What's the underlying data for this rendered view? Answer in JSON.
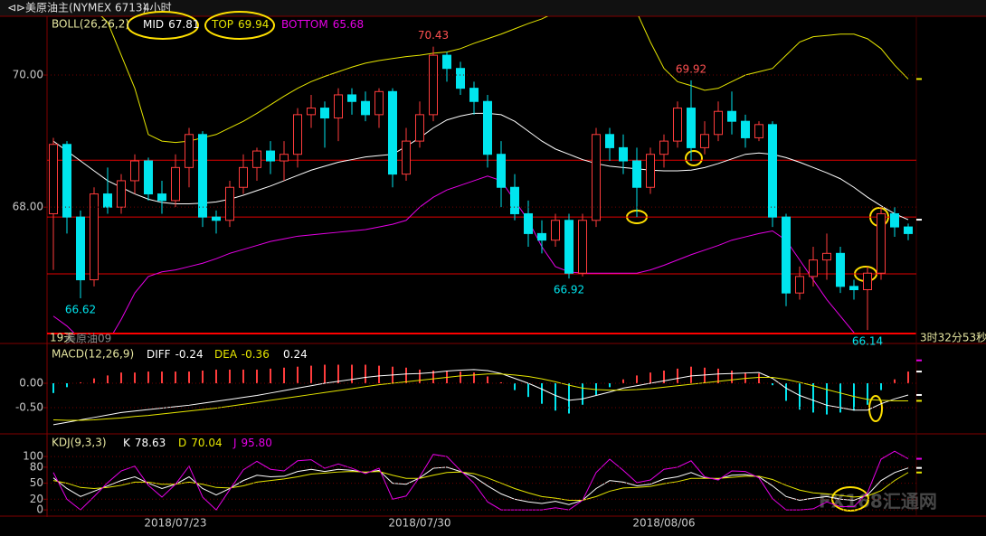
{
  "header": {
    "title": "美原油主(NYMEX 6713)",
    "period": "4小时",
    "status_days": "19天",
    "status_contract": "美原油09",
    "countdown": "3时32分53秒",
    "watermark": "FX168汇通网"
  },
  "chart_data": [
    {
      "type": "candlestick",
      "indicator": "BOLL(26,26,2)",
      "categories": [
        null,
        null,
        null,
        null,
        null,
        null,
        null,
        null,
        null,
        "2018/07/23",
        null,
        null,
        null,
        null,
        null,
        null,
        null,
        null,
        null,
        null,
        null,
        null,
        null,
        null,
        null,
        null,
        null,
        "2018/07/30",
        null,
        null,
        null,
        null,
        null,
        null,
        null,
        null,
        null,
        null,
        null,
        null,
        null,
        null,
        null,
        null,
        null,
        "2018/08/06",
        null,
        null,
        null,
        null,
        null,
        null,
        null,
        null,
        null,
        null,
        null,
        null,
        null,
        null,
        null,
        null,
        null,
        null
      ],
      "ohlc": [
        [
          67.9,
          69.05,
          67.05,
          68.95
        ],
        [
          68.95,
          69.0,
          67.6,
          67.85
        ],
        [
          67.85,
          67.95,
          66.62,
          66.9
        ],
        [
          66.9,
          68.3,
          66.8,
          68.2
        ],
        [
          68.2,
          68.6,
          67.9,
          68.0
        ],
        [
          68.0,
          68.5,
          67.9,
          68.4
        ],
        [
          68.4,
          68.8,
          68.2,
          68.7
        ],
        [
          68.7,
          68.75,
          68.1,
          68.2
        ],
        [
          68.2,
          68.4,
          67.9,
          68.1
        ],
        [
          68.1,
          68.8,
          68.0,
          68.6
        ],
        [
          68.6,
          69.2,
          68.3,
          69.1
        ],
        [
          69.1,
          69.15,
          67.7,
          67.85
        ],
        [
          67.85,
          67.95,
          67.6,
          67.8
        ],
        [
          67.8,
          68.4,
          67.7,
          68.3
        ],
        [
          68.3,
          68.8,
          68.2,
          68.6
        ],
        [
          68.6,
          68.9,
          68.4,
          68.85
        ],
        [
          68.85,
          69.0,
          68.5,
          68.7
        ],
        [
          68.7,
          69.0,
          68.4,
          68.8
        ],
        [
          68.8,
          69.5,
          68.6,
          69.4
        ],
        [
          69.4,
          69.7,
          69.2,
          69.5
        ],
        [
          69.5,
          69.6,
          68.9,
          69.35
        ],
        [
          69.35,
          69.8,
          69.0,
          69.7
        ],
        [
          69.7,
          69.8,
          69.4,
          69.6
        ],
        [
          69.6,
          69.75,
          69.3,
          69.4
        ],
        [
          69.4,
          69.8,
          69.2,
          69.75
        ],
        [
          69.75,
          69.8,
          68.3,
          68.5
        ],
        [
          68.5,
          69.2,
          68.4,
          69.0
        ],
        [
          69.0,
          69.6,
          68.9,
          69.4
        ],
        [
          69.4,
          70.43,
          69.3,
          70.3
        ],
        [
          70.3,
          70.35,
          69.9,
          70.1
        ],
        [
          70.1,
          70.2,
          69.7,
          69.8
        ],
        [
          69.8,
          69.9,
          69.4,
          69.6
        ],
        [
          69.6,
          69.7,
          68.6,
          68.8
        ],
        [
          68.8,
          69.0,
          68.0,
          68.3
        ],
        [
          68.3,
          68.5,
          67.8,
          67.9
        ],
        [
          67.9,
          68.1,
          67.4,
          67.6
        ],
        [
          67.6,
          67.8,
          67.3,
          67.5
        ],
        [
          67.5,
          67.9,
          67.4,
          67.8
        ],
        [
          67.8,
          67.9,
          66.92,
          67.0
        ],
        [
          67.0,
          67.9,
          66.95,
          67.8
        ],
        [
          67.8,
          69.2,
          67.7,
          69.1
        ],
        [
          69.1,
          69.2,
          68.7,
          68.9
        ],
        [
          68.9,
          69.1,
          68.5,
          68.7
        ],
        [
          68.7,
          68.9,
          67.85,
          68.3
        ],
        [
          68.3,
          68.9,
          68.2,
          68.8
        ],
        [
          68.8,
          69.1,
          68.6,
          69.0
        ],
        [
          69.0,
          69.6,
          68.9,
          69.5
        ],
        [
          69.5,
          69.92,
          68.7,
          68.9
        ],
        [
          68.9,
          69.3,
          68.8,
          69.1
        ],
        [
          69.1,
          69.6,
          69.0,
          69.45
        ],
        [
          69.45,
          69.75,
          69.1,
          69.3
        ],
        [
          69.3,
          69.4,
          68.9,
          69.05
        ],
        [
          69.05,
          69.3,
          69.0,
          69.25
        ],
        [
          69.25,
          69.3,
          67.7,
          67.85
        ],
        [
          67.85,
          67.9,
          66.5,
          66.7
        ],
        [
          66.7,
          67.1,
          66.6,
          66.95
        ],
        [
          66.95,
          67.4,
          66.8,
          67.2
        ],
        [
          67.2,
          67.6,
          66.9,
          67.3
        ],
        [
          67.3,
          67.4,
          66.7,
          66.8
        ],
        [
          66.8,
          66.9,
          66.6,
          66.75
        ],
        [
          66.75,
          67.1,
          66.14,
          67.0
        ],
        [
          67.0,
          68.0,
          66.9,
          67.9
        ],
        [
          67.9,
          68.0,
          67.55,
          67.7
        ],
        [
          67.7,
          67.75,
          67.5,
          67.6
        ]
      ],
      "up_color": "#ff3c3c",
      "down_color": "#00e5ee",
      "overlays": [
        {
          "name": "MID",
          "color": "#ffffff",
          "current": 67.81,
          "values": [
            69.0,
            68.85,
            68.7,
            68.55,
            68.4,
            68.3,
            68.2,
            68.12,
            68.07,
            68.05,
            68.05,
            68.06,
            68.08,
            68.12,
            68.18,
            68.25,
            68.32,
            68.4,
            68.48,
            68.56,
            68.62,
            68.68,
            68.72,
            68.76,
            68.78,
            68.8,
            68.92,
            69.05,
            69.2,
            69.32,
            69.38,
            69.42,
            69.42,
            69.4,
            69.3,
            69.15,
            69.0,
            68.88,
            68.8,
            68.72,
            68.66,
            68.62,
            68.6,
            68.58,
            68.56,
            68.55,
            68.55,
            68.56,
            68.6,
            68.66,
            68.73,
            68.8,
            68.82,
            68.8,
            68.75,
            68.68,
            68.6,
            68.52,
            68.43,
            68.3,
            68.15,
            68.02,
            67.9,
            67.81
          ]
        },
        {
          "name": "TOP",
          "color": "#e6e600",
          "current": 69.94,
          "values": [
            71.3,
            71.2,
            71.1,
            71.0,
            70.8,
            70.3,
            69.8,
            69.1,
            69.0,
            68.98,
            69.0,
            69.05,
            69.1,
            69.2,
            69.3,
            69.42,
            69.55,
            69.68,
            69.8,
            69.9,
            69.98,
            70.05,
            70.12,
            70.18,
            70.22,
            70.25,
            70.28,
            70.3,
            70.33,
            70.35,
            70.4,
            70.48,
            70.55,
            70.62,
            70.7,
            70.78,
            70.85,
            70.95,
            71.0,
            71.05,
            71.05,
            71.05,
            71.0,
            70.95,
            70.5,
            70.1,
            69.9,
            69.84,
            69.77,
            69.8,
            69.9,
            70.0,
            70.05,
            70.1,
            70.3,
            70.5,
            70.58,
            70.6,
            70.62,
            70.62,
            70.55,
            70.4,
            70.15,
            69.94
          ]
        },
        {
          "name": "BOTTOM",
          "color": "#e600e6",
          "current": 65.68,
          "values": [
            66.35,
            66.2,
            66.0,
            65.9,
            65.95,
            66.3,
            66.7,
            66.95,
            67.02,
            67.05,
            67.1,
            67.15,
            67.22,
            67.3,
            67.36,
            67.42,
            67.48,
            67.52,
            67.56,
            67.58,
            67.6,
            67.62,
            67.64,
            67.66,
            67.7,
            67.74,
            67.8,
            68.0,
            68.15,
            68.26,
            68.33,
            68.4,
            68.47,
            68.4,
            68.1,
            67.8,
            67.4,
            67.1,
            67.02,
            67.0,
            67.0,
            67.0,
            67.0,
            67.0,
            67.05,
            67.12,
            67.2,
            67.28,
            67.35,
            67.42,
            67.5,
            67.55,
            67.6,
            67.64,
            67.5,
            67.2,
            66.9,
            66.6,
            66.35,
            66.1,
            65.95,
            65.8,
            65.72,
            65.68
          ]
        }
      ],
      "price_labels": [
        66.62,
        70.43,
        69.92,
        66.92,
        66.14
      ],
      "price_lines": [
        68.71,
        67.85,
        66.99
      ],
      "price_line_color": "#e00000",
      "ylim": [
        66.1,
        70.89
      ],
      "yticks": [
        {
          "value": 70,
          "label": "70.00"
        },
        {
          "value": 68,
          "label": "68.00"
        }
      ],
      "grid": true
    },
    {
      "type": "macd",
      "indicator": "MACD(12,26,9)",
      "ylim": [
        -1.0,
        0.76
      ],
      "yticks": [
        {
          "value": 0,
          "label": "0.00"
        },
        {
          "value": -0.5,
          "label": "-0.50"
        }
      ],
      "grid": true,
      "series": [
        {
          "name": "DIFF",
          "color": "#ffffff",
          "current": -0.24,
          "values": [
            -0.85,
            -0.8,
            -0.75,
            -0.7,
            -0.65,
            -0.6,
            -0.57,
            -0.54,
            -0.51,
            -0.48,
            -0.45,
            -0.41,
            -0.37,
            -0.33,
            -0.29,
            -0.25,
            -0.2,
            -0.15,
            -0.1,
            -0.05,
            0.0,
            0.04,
            0.08,
            0.12,
            0.15,
            0.17,
            0.19,
            0.2,
            0.22,
            0.25,
            0.27,
            0.28,
            0.26,
            0.2,
            0.1,
            0.0,
            -0.12,
            -0.25,
            -0.35,
            -0.32,
            -0.25,
            -0.18,
            -0.1,
            -0.05,
            0.0,
            0.05,
            0.1,
            0.15,
            0.17,
            0.19,
            0.2,
            0.21,
            0.22,
            0.1,
            -0.1,
            -0.25,
            -0.35,
            -0.45,
            -0.5,
            -0.55,
            -0.55,
            -0.42,
            -0.32,
            -0.24
          ]
        },
        {
          "name": "DEA",
          "color": "#e6e600",
          "current": -0.36,
          "values": [
            -0.75,
            -0.76,
            -0.76,
            -0.75,
            -0.73,
            -0.71,
            -0.68,
            -0.66,
            -0.63,
            -0.6,
            -0.57,
            -0.54,
            -0.51,
            -0.47,
            -0.43,
            -0.39,
            -0.35,
            -0.31,
            -0.27,
            -0.23,
            -0.19,
            -0.15,
            -0.11,
            -0.07,
            -0.03,
            0.0,
            0.03,
            0.06,
            0.09,
            0.12,
            0.15,
            0.17,
            0.19,
            0.19,
            0.17,
            0.14,
            0.09,
            0.03,
            -0.04,
            -0.1,
            -0.13,
            -0.14,
            -0.14,
            -0.13,
            -0.11,
            -0.08,
            -0.05,
            -0.02,
            0.01,
            0.04,
            0.07,
            0.1,
            0.12,
            0.12,
            0.08,
            0.02,
            -0.05,
            -0.13,
            -0.2,
            -0.27,
            -0.33,
            -0.35,
            -0.36,
            -0.36
          ]
        }
      ],
      "histogram": {
        "color": "#ffffff",
        "up_color": "#ff3c3c",
        "down_color": "#00e5ee",
        "current": 0.24,
        "values": [
          -0.2,
          -0.08,
          0.02,
          0.1,
          0.16,
          0.22,
          0.22,
          0.24,
          0.24,
          0.24,
          0.24,
          0.26,
          0.28,
          0.28,
          0.28,
          0.28,
          0.3,
          0.32,
          0.34,
          0.36,
          0.38,
          0.38,
          0.38,
          0.38,
          0.36,
          0.34,
          0.32,
          0.28,
          0.26,
          0.26,
          0.24,
          0.22,
          0.14,
          0.02,
          -0.14,
          -0.28,
          -0.42,
          -0.56,
          -0.62,
          -0.44,
          -0.24,
          -0.08,
          0.08,
          0.16,
          0.22,
          0.26,
          0.3,
          0.34,
          0.32,
          0.3,
          0.26,
          0.22,
          0.2,
          -0.04,
          -0.36,
          -0.54,
          -0.6,
          -0.64,
          -0.6,
          -0.56,
          -0.44,
          -0.14,
          0.08,
          0.24
        ]
      }
    },
    {
      "type": "line",
      "indicator": "KDJ(9,3,3)",
      "ylim": [
        -10,
        134
      ],
      "yticks": [
        100,
        80,
        50,
        20,
        0
      ],
      "grid": true,
      "series": [
        {
          "name": "K",
          "color": "#ffffff",
          "current": 78.63,
          "values": [
            60,
            40,
            25,
            35,
            45,
            55,
            62,
            50,
            40,
            48,
            62,
            40,
            28,
            40,
            55,
            65,
            62,
            63,
            72,
            76,
            72,
            76,
            74,
            70,
            74,
            50,
            48,
            60,
            78,
            80,
            72,
            62,
            45,
            30,
            20,
            15,
            12,
            16,
            10,
            18,
            40,
            55,
            52,
            45,
            48,
            58,
            62,
            70,
            60,
            58,
            65,
            66,
            62,
            45,
            25,
            18,
            22,
            25,
            20,
            18,
            28,
            55,
            70,
            78.63
          ]
        },
        {
          "name": "D",
          "color": "#e6e600",
          "current": 70.04,
          "values": [
            55,
            50,
            42,
            40,
            42,
            46,
            52,
            52,
            48,
            48,
            52,
            48,
            42,
            41,
            45,
            52,
            55,
            58,
            62,
            67,
            69,
            71,
            72,
            71,
            72,
            65,
            59,
            59,
            65,
            70,
            71,
            68,
            60,
            50,
            40,
            32,
            25,
            22,
            18,
            18,
            25,
            35,
            41,
            42,
            44,
            49,
            53,
            59,
            59,
            59,
            61,
            63,
            63,
            57,
            46,
            37,
            32,
            30,
            27,
            24,
            26,
            36,
            55,
            70.04
          ]
        },
        {
          "name": "J",
          "color": "#e600e6",
          "current": {
            "value": 95.8,
            "label": "95.80"
          },
          "values": [
            70,
            20,
            0,
            25,
            51,
            73,
            82,
            46,
            24,
            48,
            82,
            24,
            0,
            38,
            75,
            91,
            76,
            73,
            92,
            94,
            78,
            86,
            78,
            68,
            78,
            20,
            26,
            62,
            104,
            100,
            74,
            50,
            15,
            0,
            0,
            0,
            0,
            4,
            0,
            18,
            70,
            95,
            74,
            51,
            56,
            76,
            80,
            92,
            62,
            56,
            73,
            72,
            60,
            21,
            0,
            0,
            2,
            15,
            6,
            6,
            32,
            95,
            110,
            95.8
          ]
        }
      ]
    }
  ]
}
